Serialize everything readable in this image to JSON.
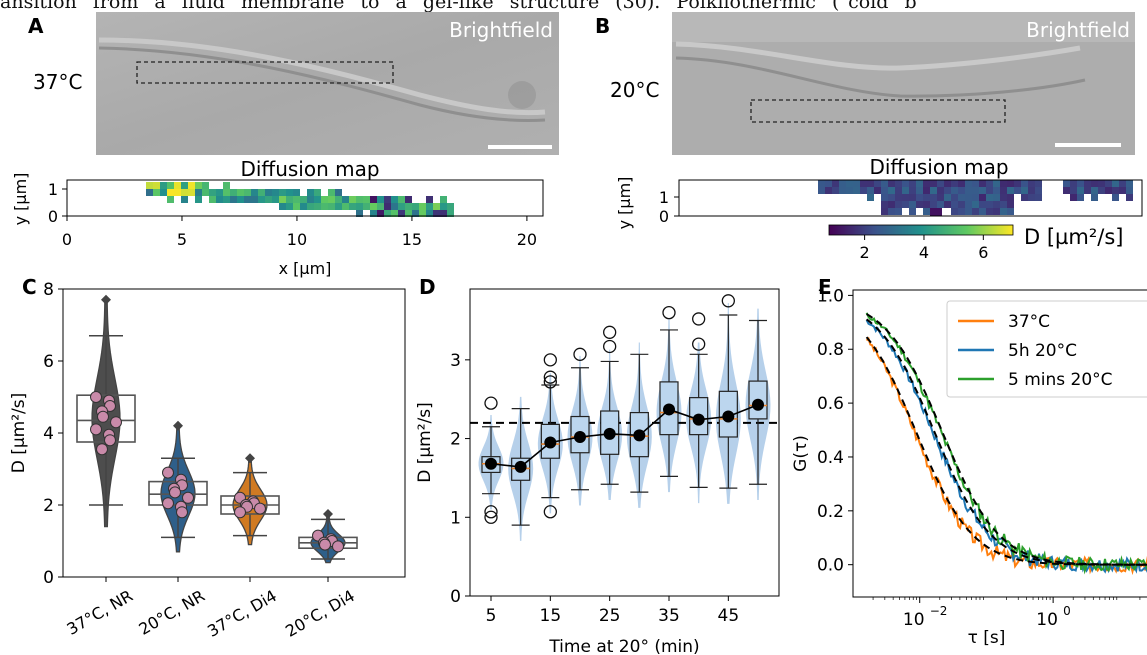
{
  "header_text": "ansition from a fluid membrane to a gel-like structure (30). Poikilothermic (\"cold b",
  "panels": {
    "A": {
      "letter": "A",
      "temp": "37°C",
      "image_label": "Brightfield",
      "map_title": "Diffusion map",
      "ylabel": "y [µm]",
      "xlabel": "x [µm]",
      "x_ticks": [
        "0",
        "5",
        "10",
        "15",
        "20"
      ],
      "y_ticks": [
        "0",
        "1"
      ]
    },
    "B": {
      "letter": "B",
      "temp": "20°C",
      "image_label": "Brightfield",
      "map_title": "Diffusion map",
      "ylabel": "y [µm]",
      "y_ticks": [
        "0",
        "1"
      ]
    },
    "C": {
      "letter": "C"
    },
    "D": {
      "letter": "D"
    },
    "E": {
      "letter": "E"
    }
  },
  "colorbar": {
    "label": "D [µm²/s]",
    "ticks": [
      "2",
      "4",
      "6"
    ],
    "range": [
      0.8,
      7.0
    ],
    "colormap": "viridis"
  },
  "chart_data": [
    {
      "panel": "C",
      "type": "box+violin",
      "ylabel": "D [µm²/s]",
      "ylim": [
        0,
        8
      ],
      "yticks": [
        "0",
        "2",
        "4",
        "6",
        "8"
      ],
      "categories": [
        "37°C, NR",
        "20°C, NR",
        "37°C, Di4",
        "20°C, Di4"
      ],
      "violin_colors": [
        "#4d4d4d",
        "#2e5f8a",
        "#d07a22",
        "#2e5f8a"
      ],
      "boxes": [
        {
          "whisker_low": 2.0,
          "q1": 3.75,
          "median": 4.35,
          "q3": 5.05,
          "whisker_high": 6.7,
          "violin_min": 1.4,
          "violin_max": 7.7,
          "points": [
            5.0,
            4.9,
            4.75,
            4.6,
            4.45,
            4.3,
            4.1,
            3.95,
            3.8,
            3.55
          ]
        },
        {
          "whisker_low": 1.1,
          "q1": 2.0,
          "median": 2.3,
          "q3": 2.65,
          "whisker_high": 3.3,
          "violin_min": 0.7,
          "violin_max": 4.2,
          "points": [
            2.9,
            2.7,
            2.55,
            2.45,
            2.35,
            2.2,
            2.05,
            1.95,
            1.8
          ]
        },
        {
          "whisker_low": 1.15,
          "q1": 1.75,
          "median": 2.0,
          "q3": 2.25,
          "whisker_high": 2.9,
          "violin_min": 0.9,
          "violin_max": 3.3,
          "points": [
            2.2,
            2.1,
            2.05,
            2.0,
            1.95,
            1.9,
            1.8
          ]
        },
        {
          "whisker_low": 0.5,
          "q1": 0.8,
          "median": 0.95,
          "q3": 1.1,
          "whisker_high": 1.6,
          "violin_min": 0.4,
          "violin_max": 1.75,
          "points": [
            1.15,
            1.05,
            1.0,
            0.95,
            0.9,
            0.85
          ]
        }
      ],
      "point_color": "#c98aa9"
    },
    {
      "panel": "D",
      "type": "box+violin",
      "xlabel": "Time at 20° (min)",
      "ylabel": "D [µm²/s]",
      "ylim": [
        0,
        3.9
      ],
      "yticks": [
        "0",
        "1",
        "2",
        "3"
      ],
      "x": [
        5,
        10,
        15,
        20,
        25,
        30,
        35,
        40,
        45,
        50
      ],
      "xticks": [
        "5",
        "15",
        "25",
        "35",
        "45"
      ],
      "reference_line": 2.2,
      "median_line_color": "#e8802a",
      "boxes": [
        {
          "whisker_low": 1.3,
          "q1": 1.57,
          "median": 1.68,
          "q3": 1.77,
          "whisker_high": 2.15,
          "mean": 1.68,
          "outliers": [
            2.45,
            1.07,
            1.0
          ]
        },
        {
          "whisker_low": 0.9,
          "q1": 1.47,
          "median": 1.62,
          "q3": 1.75,
          "whisker_high": 2.38,
          "mean": 1.64,
          "outliers": []
        },
        {
          "whisker_low": 1.25,
          "q1": 1.75,
          "median": 1.93,
          "q3": 2.18,
          "whisker_high": 2.68,
          "mean": 1.95,
          "outliers": [
            3.0,
            2.78,
            2.72,
            1.07
          ]
        },
        {
          "whisker_low": 1.35,
          "q1": 1.82,
          "median": 2.02,
          "q3": 2.28,
          "whisker_high": 2.9,
          "mean": 2.02,
          "outliers": [
            3.07
          ]
        },
        {
          "whisker_low": 1.42,
          "q1": 1.8,
          "median": 2.05,
          "q3": 2.35,
          "whisker_high": 2.98,
          "mean": 2.06,
          "outliers": [
            3.35,
            3.17
          ]
        },
        {
          "whisker_low": 1.32,
          "q1": 1.77,
          "median": 2.03,
          "q3": 2.33,
          "whisker_high": 3.07,
          "mean": 2.04,
          "outliers": []
        },
        {
          "whisker_low": 1.52,
          "q1": 2.05,
          "median": 2.33,
          "q3": 2.72,
          "whisker_high": 3.38,
          "mean": 2.37,
          "outliers": [
            3.6
          ]
        },
        {
          "whisker_low": 1.38,
          "q1": 2.05,
          "median": 2.25,
          "q3": 2.52,
          "whisker_high": 3.07,
          "mean": 2.24,
          "outliers": [
            3.52,
            3.2
          ]
        },
        {
          "whisker_low": 1.37,
          "q1": 2.02,
          "median": 2.25,
          "q3": 2.6,
          "whisker_high": 3.57,
          "mean": 2.28,
          "outliers": [
            3.75
          ]
        },
        {
          "whisker_low": 1.42,
          "q1": 2.25,
          "median": 2.42,
          "q3": 2.73,
          "whisker_high": 3.5,
          "mean": 2.43,
          "outliers": []
        }
      ]
    },
    {
      "panel": "E",
      "type": "line",
      "xlabel": "τ [s]",
      "ylabel": "G(τ)",
      "xscale": "log",
      "xlim": [
        0.001,
        40
      ],
      "ylim": [
        -0.12,
        1.02
      ],
      "yticks": [
        "0.0",
        "0.2",
        "0.4",
        "0.6",
        "0.8",
        "1.0"
      ],
      "xticks": [
        "10^-2",
        "10^0"
      ],
      "legend_position": "top-right",
      "series": [
        {
          "name": "37°C",
          "color": "#ff7f0e",
          "tau_c": 0.0085,
          "noise_seed": 3
        },
        {
          "name": "5h 20°C",
          "color": "#1f77b4",
          "tau_c": 0.016,
          "noise_seed": 7
        },
        {
          "name": "5 mins 20°C",
          "color": "#2ca02c",
          "tau_c": 0.021,
          "noise_seed": 11
        }
      ],
      "fit_style": "black dashed"
    }
  ]
}
